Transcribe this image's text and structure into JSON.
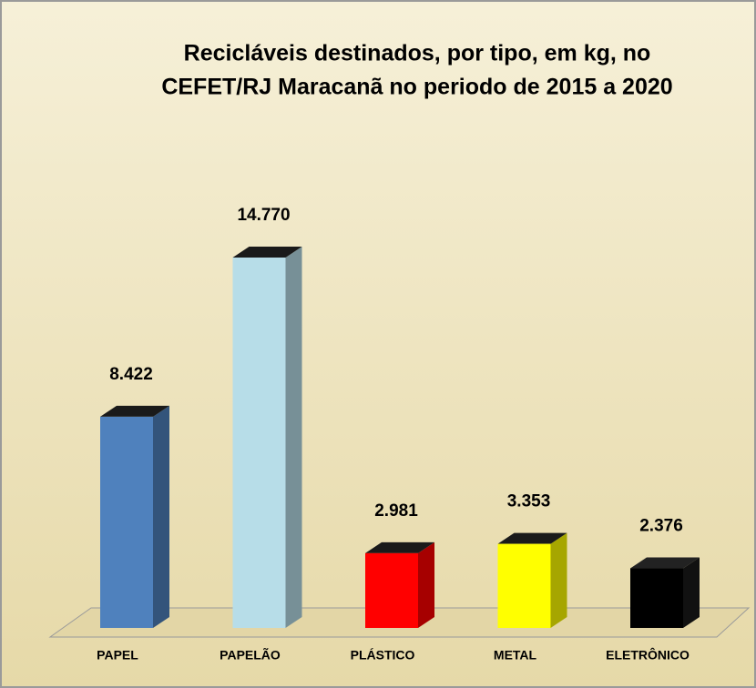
{
  "chart_data": {
    "type": "bar3d",
    "title": [
      "Recicláveis destinados, por tipo, em kg, no",
      "CEFET/RJ Maracanã no periodo de 2015  a 2020"
    ],
    "categories": [
      "PAPEL",
      "PAPELÃO",
      "PLÁSTICO",
      "METAL",
      "ELETRÔNICO"
    ],
    "values": [
      8422,
      14770,
      2981,
      3353,
      2376
    ],
    "value_labels": [
      "8.422",
      "14.770",
      "2.981",
      "3.353",
      "2.376"
    ],
    "colors": [
      "#4f81bd",
      "#b7dde8",
      "#ff0000",
      "#ffff00",
      "#000000"
    ]
  }
}
